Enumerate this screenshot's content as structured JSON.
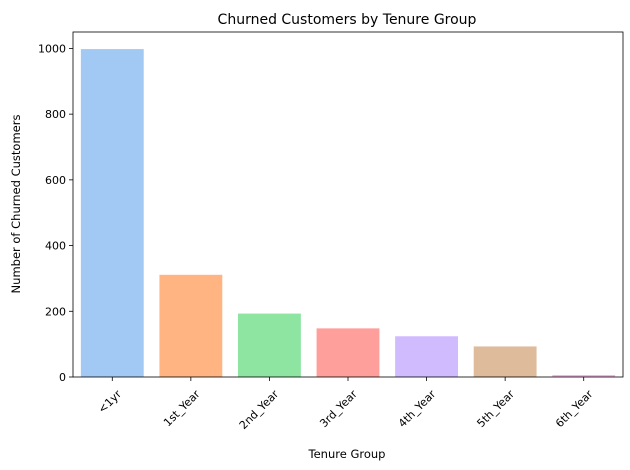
{
  "chart_data": {
    "type": "bar",
    "title": "Churned Customers by Tenure Group",
    "xlabel": "Tenure Group",
    "ylabel": "Number of Churned Customers",
    "categories": [
      "<1yr",
      "1st_Year",
      "2nd_Year",
      "3rd_Year",
      "4th_Year",
      "5th_Year",
      "6th_Year"
    ],
    "values": [
      998,
      311,
      193,
      148,
      124,
      93,
      6
    ],
    "colors": [
      "#a1c9f4",
      "#ffb482",
      "#8de5a1",
      "#ff9f9b",
      "#d0bbff",
      "#debb9b",
      "#fab0e4"
    ],
    "ylim": [
      0,
      1050
    ],
    "yticks": [
      0,
      200,
      400,
      600,
      800,
      1000
    ],
    "grid": false,
    "legend": "none"
  }
}
